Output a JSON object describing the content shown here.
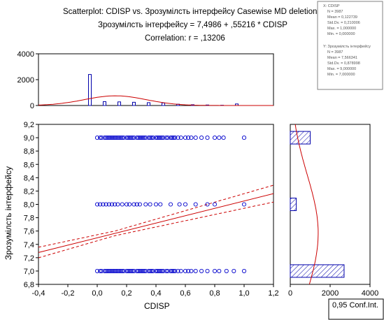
{
  "header": {
    "title_line1": "Scatterplot: CDISP    vs. Зрозумілсть інтерфейсу Casewise MD deletion)",
    "title_line2": "Зрозумілсть інтерфейсу = 7,4986 + ,55216 * CDISP",
    "title_line3": "Correlation: r = ,13206"
  },
  "stats_box": {
    "var1": {
      "name": "X: CDISP",
      "lines": [
        "N = 3987",
        "Mean = 0,122739",
        "Std.Dv. = 0,210006",
        "Max. = 1,000000",
        "Min. = 0,000000"
      ]
    },
    "var2": {
      "name": "Y: Зрозумілсть інтерфейсу",
      "lines": [
        "N = 3987",
        "Mean = 7,566341",
        "Std.Dv. = 0,878998",
        "Max. = 9,000000",
        "Min. = 7,000000"
      ]
    }
  },
  "legend": {
    "conf_label": "0,95 Conf.Int."
  },
  "colors": {
    "points": "#0000cc",
    "fit_line": "#cc0000",
    "bars_edge": "#0000aa",
    "frame_bg": "#c0c0c0"
  },
  "chart_data": [
    {
      "type": "scatter",
      "xlabel": "CDISP",
      "ylabel": "Зрозумілсть інтерфейсу",
      "xlim": [
        -0.4,
        1.2
      ],
      "ylim": [
        6.8,
        9.2
      ],
      "xticks": [
        "-0,4",
        "-0,2",
        "0,0",
        "0,2",
        "0,4",
        "0,6",
        "0,8",
        "1,0",
        "1,2"
      ],
      "yticks": [
        "6,8",
        "7,0",
        "7,2",
        "7,4",
        "7,6",
        "7,8",
        "8,0",
        "8,2",
        "8,4",
        "8,6",
        "8,8",
        "9,0",
        "9,2"
      ],
      "fit": {
        "intercept": 7.4986,
        "slope": 0.55216
      },
      "series": [
        {
          "y": 9.0,
          "x": [
            0,
            0.02,
            0.03,
            0.05,
            0.06,
            0.07,
            0.08,
            0.09,
            0.1,
            0.11,
            0.12,
            0.13,
            0.14,
            0.15,
            0.16,
            0.17,
            0.18,
            0.2,
            0.21,
            0.22,
            0.23,
            0.24,
            0.25,
            0.27,
            0.28,
            0.29,
            0.3,
            0.31,
            0.32,
            0.33,
            0.35,
            0.36,
            0.37,
            0.38,
            0.4,
            0.41,
            0.42,
            0.43,
            0.44,
            0.45,
            0.47,
            0.48,
            0.5,
            0.51,
            0.52,
            0.53,
            0.55,
            0.57,
            0.6,
            0.62,
            0.64,
            0.67,
            0.71,
            0.75,
            0.8,
            0.83,
            0.86,
            1.0
          ]
        },
        {
          "y": 8.0,
          "x": [
            0,
            0.02,
            0.04,
            0.06,
            0.08,
            0.1,
            0.12,
            0.14,
            0.17,
            0.2,
            0.22,
            0.25,
            0.27,
            0.29,
            0.33,
            0.36,
            0.4,
            0.43,
            0.5,
            0.56,
            0.6,
            0.67,
            0.75,
            0.8,
            1.0
          ]
        },
        {
          "y": 7.0,
          "x": [
            0,
            0.02,
            0.03,
            0.05,
            0.06,
            0.07,
            0.08,
            0.09,
            0.1,
            0.11,
            0.12,
            0.13,
            0.14,
            0.15,
            0.16,
            0.17,
            0.18,
            0.2,
            0.21,
            0.22,
            0.23,
            0.24,
            0.25,
            0.27,
            0.28,
            0.29,
            0.3,
            0.31,
            0.32,
            0.33,
            0.35,
            0.36,
            0.37,
            0.38,
            0.4,
            0.41,
            0.42,
            0.43,
            0.44,
            0.45,
            0.47,
            0.48,
            0.5,
            0.51,
            0.52,
            0.53,
            0.55,
            0.57,
            0.6,
            0.62,
            0.64,
            0.67,
            0.71,
            0.75,
            0.8,
            0.83,
            0.88,
            0.93,
            1.0
          ]
        }
      ]
    },
    {
      "type": "bar",
      "orientation": "vertical",
      "ylim": [
        0,
        4000
      ],
      "yticks": [
        "0",
        "2000",
        "4000"
      ],
      "bins_x": [
        -0.05,
        0.05,
        0.15,
        0.25,
        0.35,
        0.45,
        0.55,
        0.65,
        0.75,
        0.85,
        0.95
      ],
      "values": [
        2400,
        300,
        280,
        250,
        220,
        200,
        100,
        60,
        40,
        20,
        120
      ],
      "normal_curve": {
        "mean": 0.122739,
        "sd": 0.210006,
        "peak": 750
      }
    },
    {
      "type": "bar",
      "orientation": "horizontal",
      "xlim": [
        0,
        4000
      ],
      "xticks": [
        "0",
        "2000",
        "4000"
      ],
      "categories": [
        7.0,
        8.0,
        9.0
      ],
      "values": [
        2700,
        300,
        1000
      ],
      "normal_curve": {
        "mean": 7.566341,
        "sd": 0.878998,
        "peak": 1400
      }
    }
  ]
}
